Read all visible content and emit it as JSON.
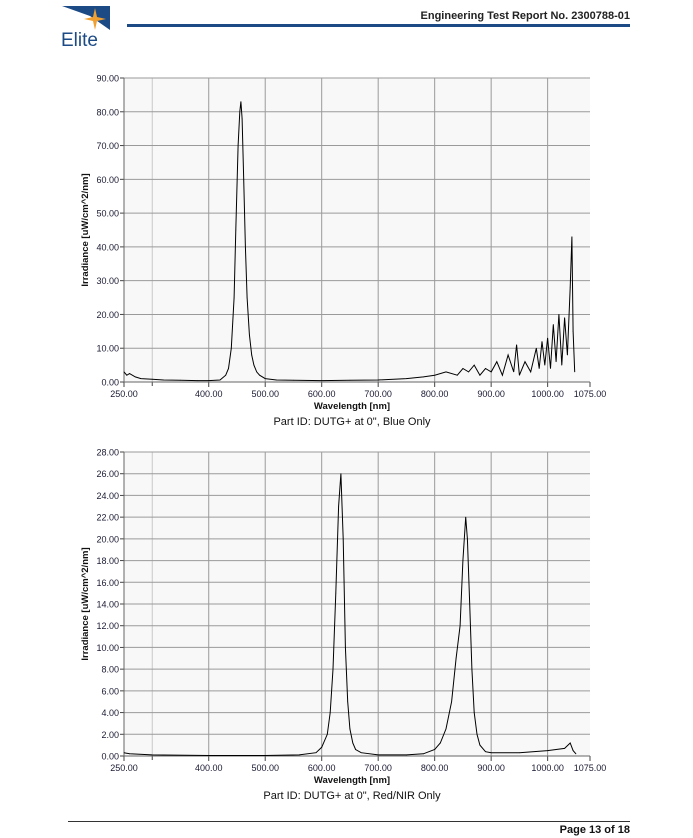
{
  "header": {
    "logo_text": "Elite",
    "title": "Engineering Test Report No. 2300788-01"
  },
  "footer": {
    "page": "Page 13 of 18"
  },
  "colors": {
    "brand": "#1c4a85",
    "star": "#f0a030",
    "plot_bg": "#f8f8f8"
  },
  "chart_data": [
    {
      "type": "line",
      "title": "Part ID: DUTG+ at 0\", Blue Only",
      "xlabel": "Wavelength [nm]",
      "ylabel": "Irradiance [uW/cm^2/nm]",
      "xlim": [
        250,
        1075
      ],
      "ylim": [
        0,
        90
      ],
      "xticks": [
        "250.00",
        "400.00",
        "500.00",
        "600.00",
        "700.00",
        "800.00",
        "900.00",
        "1000.00",
        "1075.00"
      ],
      "xtick_values": [
        250,
        400,
        500,
        600,
        700,
        800,
        900,
        1000,
        1075
      ],
      "yticks": [
        "0.00",
        "10.00",
        "20.00",
        "30.00",
        "40.00",
        "50.00",
        "60.00",
        "70.00",
        "80.00",
        "90.00"
      ],
      "ytick_values": [
        0,
        10,
        20,
        30,
        40,
        50,
        60,
        70,
        80,
        90
      ],
      "grid": true,
      "series": [
        {
          "name": "Irradiance",
          "x": [
            250,
            255,
            260,
            270,
            280,
            300,
            320,
            350,
            380,
            400,
            420,
            430,
            435,
            440,
            445,
            448,
            452,
            455,
            457,
            459,
            462,
            465,
            468,
            472,
            476,
            480,
            485,
            490,
            500,
            520,
            550,
            600,
            650,
            700,
            750,
            780,
            800,
            820,
            840,
            850,
            860,
            870,
            880,
            890,
            900,
            910,
            920,
            930,
            940,
            945,
            950,
            960,
            970,
            980,
            985,
            990,
            995,
            1000,
            1005,
            1010,
            1015,
            1020,
            1025,
            1030,
            1035,
            1040,
            1043,
            1045,
            1048
          ],
          "y": [
            3,
            2,
            2.5,
            1.5,
            1,
            0.8,
            0.6,
            0.5,
            0.4,
            0.4,
            0.6,
            2,
            4,
            10,
            25,
            45,
            70,
            80,
            83,
            78,
            60,
            40,
            25,
            14,
            8,
            5,
            3,
            2,
            1,
            0.6,
            0.5,
            0.4,
            0.5,
            0.6,
            1,
            1.5,
            2,
            3,
            2,
            4,
            3,
            5,
            2,
            4,
            3,
            6,
            2,
            8,
            3,
            11,
            2,
            6,
            3,
            10,
            4,
            12,
            5,
            13,
            4,
            17,
            6,
            20,
            5,
            19,
            8,
            28,
            43,
            15,
            3
          ]
        }
      ]
    },
    {
      "type": "line",
      "title": "Part ID: DUTG+ at 0\", Red/NIR Only",
      "xlabel": "Wavelength [nm]",
      "ylabel": "Irradiance [uW/cm^2/nm]",
      "xlim": [
        250,
        1075
      ],
      "ylim": [
        0,
        28
      ],
      "xticks": [
        "250.00",
        "400.00",
        "500.00",
        "600.00",
        "700.00",
        "800.00",
        "900.00",
        "1000.00",
        "1075.00"
      ],
      "xtick_values": [
        250,
        400,
        500,
        600,
        700,
        800,
        900,
        1000,
        1075
      ],
      "yticks": [
        "0.00",
        "2.00",
        "4.00",
        "6.00",
        "8.00",
        "10.00",
        "12.00",
        "14.00",
        "16.00",
        "18.00",
        "20.00",
        "22.00",
        "24.00",
        "26.00",
        "28.00"
      ],
      "ytick_values": [
        0,
        2,
        4,
        6,
        8,
        10,
        12,
        14,
        16,
        18,
        20,
        22,
        24,
        26,
        28
      ],
      "grid": true,
      "series": [
        {
          "name": "Irradiance",
          "x": [
            250,
            260,
            300,
            400,
            500,
            560,
            590,
            600,
            610,
            615,
            620,
            625,
            630,
            634,
            638,
            642,
            646,
            650,
            655,
            660,
            670,
            700,
            750,
            780,
            800,
            810,
            820,
            830,
            838,
            845,
            850,
            855,
            858,
            862,
            866,
            870,
            875,
            880,
            890,
            900,
            950,
            1000,
            1030,
            1040,
            1045,
            1050
          ],
          "y": [
            0.3,
            0.2,
            0.1,
            0.05,
            0.05,
            0.1,
            0.3,
            0.8,
            2,
            4,
            8,
            15,
            23,
            26,
            20,
            10,
            5,
            2.5,
            1.2,
            0.6,
            0.3,
            0.1,
            0.1,
            0.2,
            0.6,
            1.2,
            2.5,
            5,
            9,
            12,
            18,
            22,
            20,
            14,
            8,
            4,
            2,
            1,
            0.4,
            0.3,
            0.3,
            0.5,
            0.7,
            1.2,
            0.5,
            0.2
          ]
        }
      ]
    }
  ]
}
